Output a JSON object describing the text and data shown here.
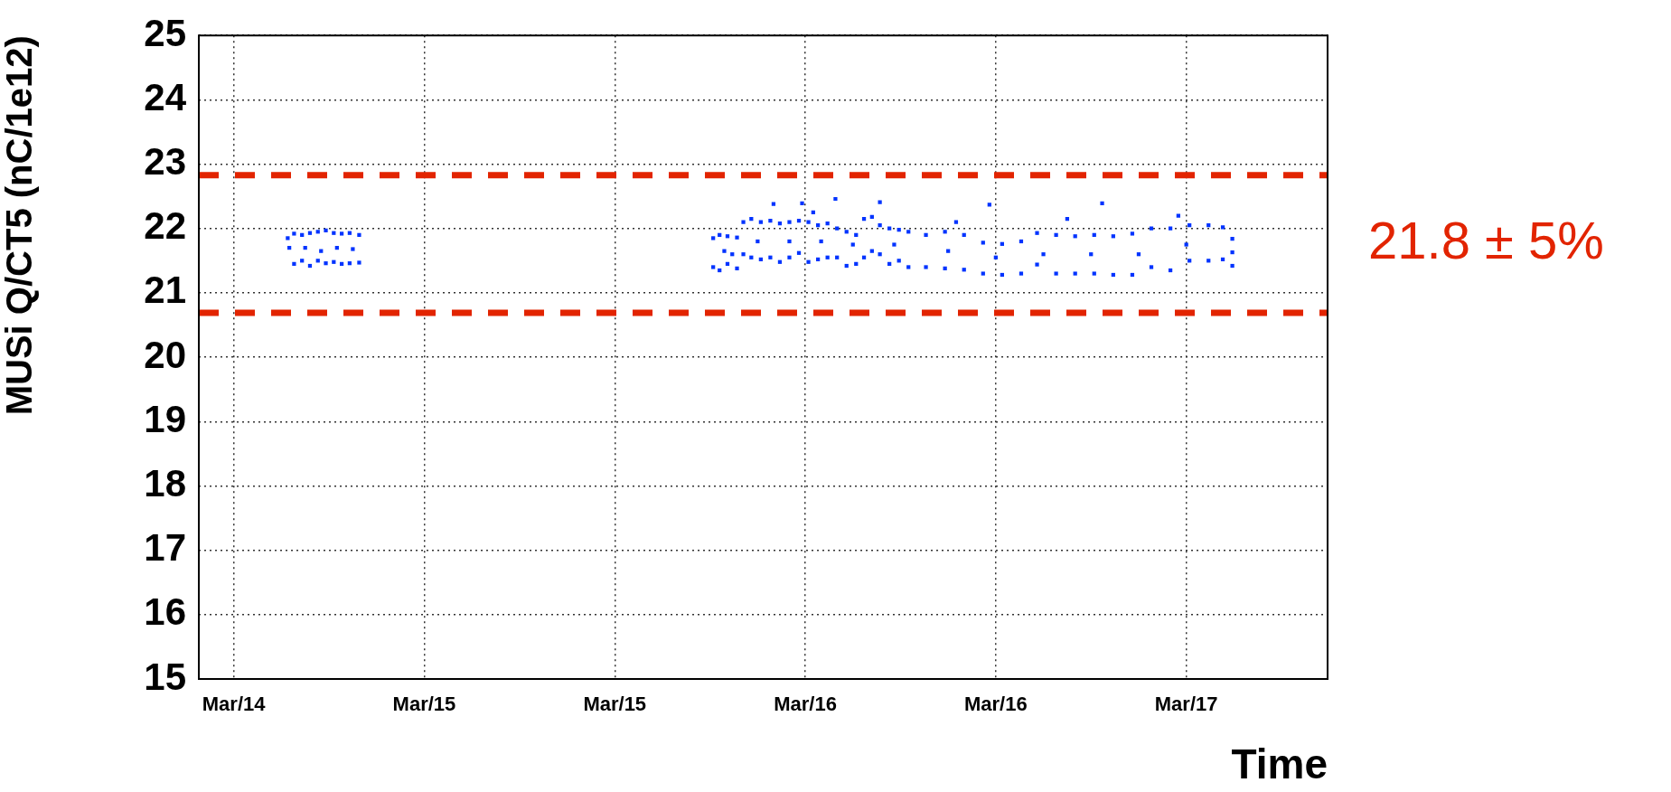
{
  "chart_data": {
    "type": "scatter",
    "xlabel": "Time",
    "ylabel": "MUSi Q/CT5 (nC/1e12)",
    "marker": "square",
    "grid": true,
    "legend": false,
    "xlim": [
      "--03-14T15:48",
      "--03-17T14:54"
    ],
    "xticks": [
      {
        "value": "--03-14T18:00",
        "label": "Mar/14"
      },
      {
        "value": "--03-15T06:00",
        "label": "Mar/15"
      },
      {
        "value": "--03-15T18:00",
        "label": "Mar/15"
      },
      {
        "value": "--03-16T06:00",
        "label": "Mar/16"
      },
      {
        "value": "--03-16T18:00",
        "label": "Mar/16"
      },
      {
        "value": "--03-17T06:00",
        "label": "Mar/17"
      }
    ],
    "ylim": [
      15,
      25
    ],
    "yticks": [
      15,
      16,
      17,
      18,
      19,
      20,
      21,
      22,
      23,
      24,
      25
    ],
    "series": [
      {
        "color": "#0033ff",
        "x": [
          "--03-14T21:24",
          "--03-14T21:30",
          "--03-14T21:48",
          "--03-14T21:48",
          "--03-14T22:18",
          "--03-14T22:18",
          "--03-14T22:48",
          "--03-14T22:48",
          "--03-14T23:18",
          "--03-14T23:18",
          "--03-14T23:48",
          "--03-14T23:48",
          "--03-15T00:18",
          "--03-15T00:18",
          "--03-15T00:48",
          "--03-15T00:48",
          "--03-15T01:18",
          "--03-15T01:18",
          "--03-15T01:54",
          "--03-15T01:54",
          "--03-14T22:30",
          "--03-14T23:30",
          "--03-15T00:30",
          "--03-15T01:30",
          "--03-16T00:12",
          "--03-16T00:12",
          "--03-16T00:36",
          "--03-16T00:36",
          "--03-16T01:06",
          "--03-16T01:06",
          "--03-16T01:42",
          "--03-16T01:42",
          "--03-16T00:54",
          "--03-16T01:24",
          "--03-16T02:06",
          "--03-16T02:06",
          "--03-16T02:36",
          "--03-16T02:36",
          "--03-16T03:12",
          "--03-16T03:12",
          "--03-16T03:48",
          "--03-16T03:48",
          "--03-16T04:24",
          "--03-16T04:24",
          "--03-16T05:00",
          "--03-16T05:00",
          "--03-16T05:36",
          "--03-16T05:36",
          "--03-16T06:12",
          "--03-16T06:12",
          "--03-16T06:48",
          "--03-16T06:48",
          "--03-16T07:24",
          "--03-16T07:24",
          "--03-16T08:00",
          "--03-16T08:00",
          "--03-16T08:36",
          "--03-16T08:36",
          "--03-16T09:12",
          "--03-16T09:12",
          "--03-16T09:42",
          "--03-16T09:42",
          "--03-16T10:12",
          "--03-16T10:12",
          "--03-16T03:00",
          "--03-16T05:00",
          "--03-16T07:00",
          "--03-16T09:00",
          "--03-16T04:00",
          "--03-16T05:48",
          "--03-16T07:54",
          "--03-16T06:30",
          "--03-16T10:42",
          "--03-16T10:42",
          "--03-16T10:42",
          "--03-16T11:18",
          "--03-16T11:18",
          "--03-16T11:54",
          "--03-16T11:54",
          "--03-16T12:30",
          "--03-16T12:30",
          "--03-16T11:36",
          "--03-16T13:36",
          "--03-16T13:36",
          "--03-16T14:48",
          "--03-16T14:48",
          "--03-16T16:00",
          "--03-16T16:00",
          "--03-16T17:12",
          "--03-16T17:12",
          "--03-16T18:24",
          "--03-16T18:24",
          "--03-16T19:36",
          "--03-16T19:36",
          "--03-16T20:36",
          "--03-16T20:36",
          "--03-16T21:48",
          "--03-16T21:48",
          "--03-16T23:00",
          "--03-16T23:00",
          "--03-17T00:12",
          "--03-17T00:12",
          "--03-17T01:24",
          "--03-17T01:24",
          "--03-17T02:36",
          "--03-17T02:36",
          "--03-17T03:48",
          "--03-17T03:48",
          "--03-17T05:00",
          "--03-17T05:00",
          "--03-17T06:12",
          "--03-17T06:12",
          "--03-17T07:24",
          "--03-17T07:24",
          "--03-17T08:18",
          "--03-17T08:18",
          "--03-16T15:00",
          "--03-16T18:00",
          "--03-16T21:00",
          "--03-17T00:00",
          "--03-17T03:00",
          "--03-17T06:00",
          "--03-16T17:36",
          "--03-17T00:42",
          "--03-16T15:30",
          "--03-16T22:30",
          "--03-17T05:30",
          "--03-17T08:54",
          "--03-17T08:54",
          "--03-17T08:54"
        ],
        "values": [
          21.85,
          21.7,
          21.92,
          21.45,
          21.9,
          21.5,
          21.93,
          21.42,
          21.95,
          21.5,
          21.97,
          21.46,
          21.93,
          21.48,
          21.92,
          21.45,
          21.93,
          21.46,
          21.9,
          21.47,
          21.7,
          21.65,
          21.7,
          21.68,
          21.85,
          21.4,
          21.9,
          21.35,
          21.88,
          21.45,
          21.86,
          21.38,
          21.65,
          21.6,
          22.1,
          21.6,
          22.15,
          21.55,
          22.1,
          21.52,
          22.12,
          21.55,
          22.08,
          21.48,
          22.1,
          21.55,
          22.12,
          21.62,
          22.1,
          21.48,
          22.05,
          21.52,
          22.08,
          21.55,
          22.0,
          21.55,
          21.95,
          21.42,
          21.9,
          21.45,
          22.15,
          21.55,
          22.18,
          21.65,
          21.8,
          21.8,
          21.8,
          21.75,
          22.38,
          22.39,
          22.46,
          22.25,
          22.41,
          22.05,
          21.6,
          22.0,
          21.45,
          21.98,
          21.5,
          21.95,
          21.4,
          21.75,
          21.9,
          21.4,
          21.95,
          21.38,
          21.9,
          21.36,
          21.78,
          21.3,
          21.76,
          21.28,
          21.8,
          21.3,
          21.93,
          21.44,
          21.9,
          21.3,
          21.88,
          21.3,
          21.9,
          21.3,
          21.88,
          21.28,
          21.92,
          21.28,
          22.0,
          21.4,
          22.0,
          21.35,
          22.05,
          21.5,
          22.05,
          21.5,
          22.02,
          21.52,
          21.65,
          21.55,
          21.6,
          21.6,
          21.6,
          21.75,
          22.37,
          22.39,
          22.1,
          22.15,
          22.2,
          21.84,
          21.63,
          21.42
        ]
      }
    ],
    "ref_lines": [
      {
        "axis": "y",
        "value": 22.83,
        "color": "#e22400",
        "line_style": "dashed"
      },
      {
        "axis": "y",
        "value": 20.69,
        "color": "#e22400",
        "line_style": "dashed"
      }
    ],
    "annotations": [
      "21.8 ± 5%"
    ]
  }
}
